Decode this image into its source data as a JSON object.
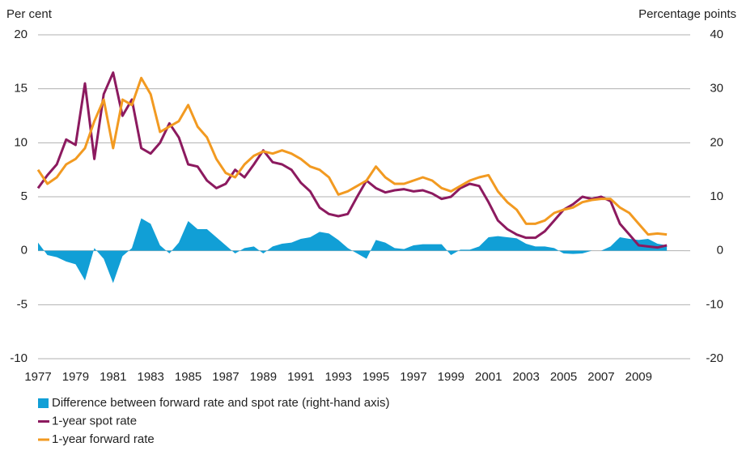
{
  "chart_data": {
    "type": "line",
    "y_label": "Per cent",
    "y2_label": "Percentage points",
    "x": [
      1977.0,
      1977.5,
      1978.0,
      1978.5,
      1979.0,
      1979.5,
      1980.0,
      1980.5,
      1981.0,
      1981.5,
      1982.0,
      1982.5,
      1983.0,
      1983.5,
      1984.0,
      1984.5,
      1985.0,
      1985.5,
      1986.0,
      1986.5,
      1987.0,
      1987.5,
      1988.0,
      1988.5,
      1989.0,
      1989.5,
      1990.0,
      1990.5,
      1991.0,
      1991.5,
      1992.0,
      1992.5,
      1993.0,
      1993.5,
      1994.0,
      1994.5,
      1995.0,
      1995.5,
      1996.0,
      1996.5,
      1997.0,
      1997.5,
      1998.0,
      1998.5,
      1999.0,
      1999.5,
      2000.0,
      2000.5,
      2001.0,
      2001.5,
      2002.0,
      2002.5,
      2003.0,
      2003.5,
      2004.0,
      2004.5,
      2005.0,
      2005.5,
      2006.0,
      2006.5,
      2007.0,
      2007.5,
      2008.0,
      2008.5,
      2009.0,
      2009.5,
      2010.0,
      2010.5
    ],
    "series": [
      {
        "name": "Difference between forward rate and spot rate (right-hand axis)",
        "color": "#119fd6",
        "kind": "area",
        "axis": "y2",
        "values": [
          1.5,
          -0.8,
          -1.2,
          -2.0,
          -2.5,
          -5.5,
          0.5,
          -1.5,
          -6.0,
          -1.0,
          0.5,
          6.0,
          5.0,
          1.0,
          -0.5,
          1.5,
          5.5,
          4.0,
          4.0,
          2.5,
          1.0,
          -0.5,
          0.5,
          0.8,
          -0.5,
          0.8,
          1.3,
          1.5,
          2.2,
          2.5,
          3.5,
          3.2,
          2.0,
          0.5,
          -0.5,
          -1.5,
          2.0,
          1.5,
          0.5,
          0.3,
          1.0,
          1.2,
          1.2,
          1.2,
          -0.8,
          0.2,
          0.2,
          0.8,
          2.5,
          2.7,
          2.5,
          2.3,
          1.3,
          0.8,
          0.8,
          0.5,
          -0.5,
          -0.6,
          -0.5,
          0,
          0,
          0.8,
          2.5,
          2.2,
          2.0,
          2.2,
          1.3,
          1.0
        ]
      },
      {
        "name": "1-year spot rate",
        "color": "#8c1a5f",
        "kind": "line",
        "values": [
          5.8,
          7.0,
          8.0,
          10.3,
          9.8,
          15.5,
          8.5,
          14.5,
          16.5,
          12.5,
          14.0,
          9.5,
          9.0,
          10.0,
          11.8,
          10.5,
          8.0,
          7.8,
          6.5,
          5.8,
          6.2,
          7.5,
          6.8,
          8.0,
          9.3,
          8.2,
          8.0,
          7.5,
          6.3,
          5.5,
          4.0,
          3.4,
          3.2,
          3.4,
          5.0,
          6.5,
          5.8,
          5.4,
          5.6,
          5.7,
          5.5,
          5.6,
          5.3,
          4.8,
          5.0,
          5.8,
          6.2,
          6.0,
          4.5,
          2.8,
          2.0,
          1.5,
          1.2,
          1.2,
          1.8,
          2.8,
          3.8,
          4.3,
          5.0,
          4.8,
          5.0,
          4.6,
          2.5,
          1.5,
          0.5,
          0.4,
          0.3,
          0.5
        ]
      },
      {
        "name": "1-year forward rate",
        "color": "#f29a21",
        "kind": "line",
        "values": [
          7.5,
          6.2,
          6.8,
          8.0,
          8.5,
          9.5,
          12.0,
          14.0,
          9.5,
          14.0,
          13.5,
          16.0,
          14.5,
          11.0,
          11.5,
          12.0,
          13.5,
          11.5,
          10.5,
          8.5,
          7.2,
          6.8,
          8.0,
          8.8,
          9.2,
          9.0,
          9.3,
          9.0,
          8.5,
          7.8,
          7.5,
          6.8,
          5.2,
          5.5,
          6.0,
          6.5,
          7.8,
          6.8,
          6.2,
          6.2,
          6.5,
          6.8,
          6.5,
          5.8,
          5.5,
          6.0,
          6.5,
          6.8,
          7.0,
          5.5,
          4.5,
          3.8,
          2.5,
          2.5,
          2.8,
          3.5,
          3.8,
          4.0,
          4.5,
          4.7,
          4.8,
          4.8,
          4.0,
          3.5,
          2.5,
          1.5,
          1.6,
          1.5
        ]
      }
    ],
    "xlim": [
      1977,
      2011.4
    ],
    "xticks": [
      1977,
      1979,
      1981,
      1983,
      1985,
      1987,
      1989,
      1991,
      1993,
      1995,
      1997,
      1999,
      2001,
      2003,
      2005,
      2007,
      2009
    ],
    "ylim": [
      -10,
      20
    ],
    "yticks": [
      -10,
      -5,
      0,
      5,
      10,
      15,
      20
    ],
    "y2lim": [
      -20,
      40
    ],
    "y2ticks": [
      -20,
      -10,
      0,
      10,
      20,
      30,
      40
    ],
    "grid": true
  }
}
